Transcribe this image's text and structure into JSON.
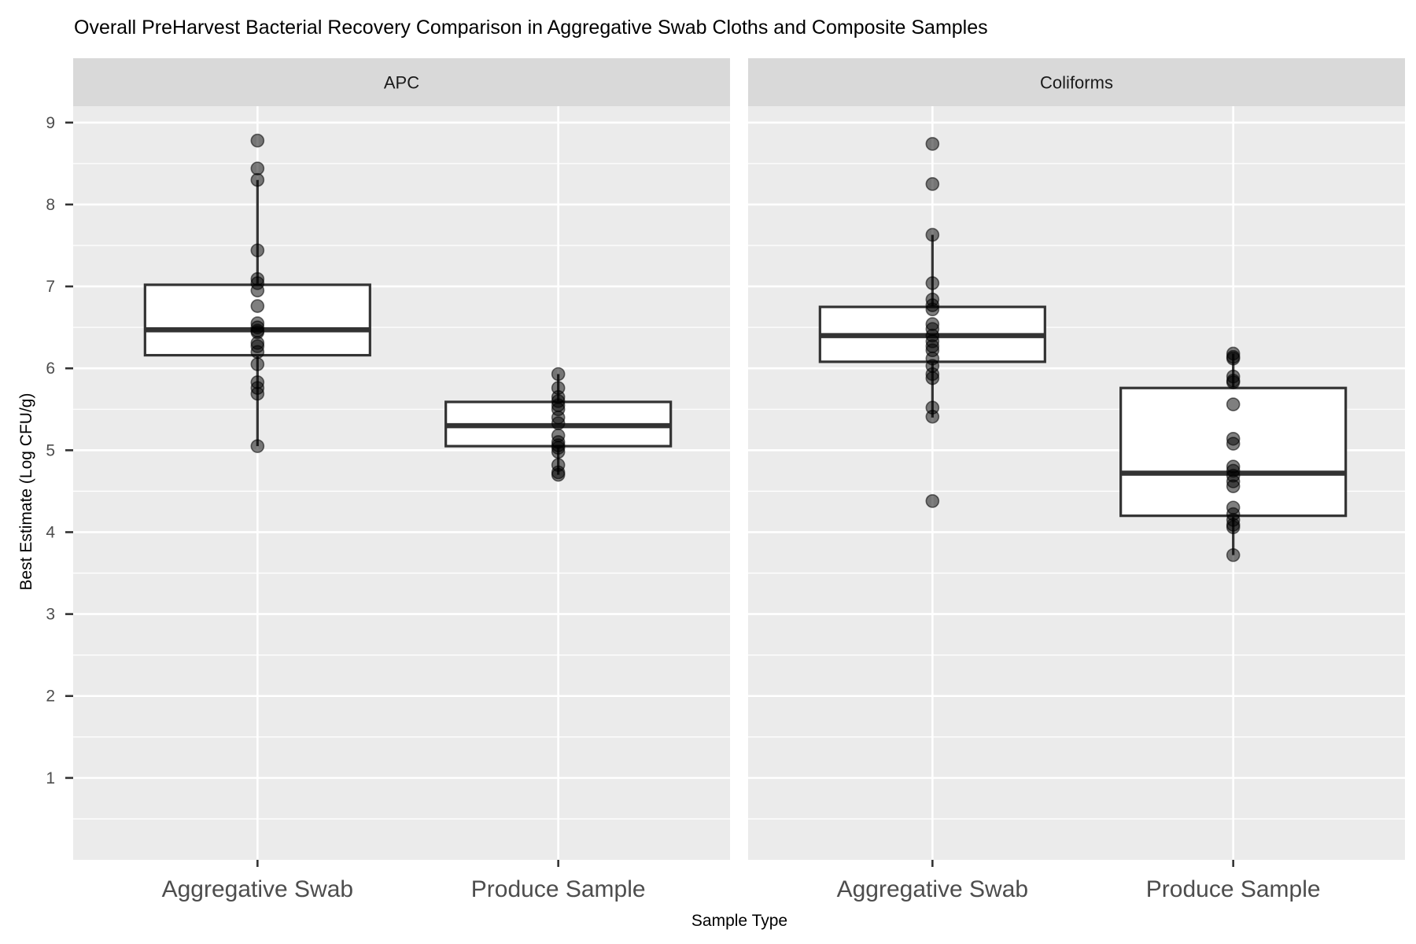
{
  "chart_data": {
    "type": "box",
    "title": "Overall PreHarvest Bacterial Recovery Comparison in Aggregative Swab Cloths and Composite Samples",
    "xlabel": "Sample Type",
    "ylabel": "Best Estimate (Log CFU/g)",
    "ylim": [
      0,
      9.2
    ],
    "yticks": [
      1,
      2,
      3,
      4,
      5,
      6,
      7,
      8,
      9
    ],
    "ytick_labels": [
      "1",
      "2",
      "3",
      "4",
      "5",
      "6",
      "7",
      "8",
      "9"
    ],
    "categories": [
      "Aggregative Swab",
      "Produce Sample"
    ],
    "grid": true,
    "legend": "none",
    "colors": {
      "panel_bg": "#ebebeb",
      "strip_bg": "#d9d9d9",
      "grid": "#ffffff",
      "box_line": "#333333",
      "box_fill": "#ffffff",
      "point": "#000000"
    },
    "panels": [
      {
        "name": "APC",
        "groups": [
          {
            "category": "Aggregative Swab",
            "whisker_low": 5.05,
            "q1": 6.16,
            "median": 6.47,
            "q3": 7.02,
            "whisker_high": 8.3,
            "points": [
              8.78,
              8.44,
              8.3,
              7.44,
              7.09,
              7.04,
              6.95,
              6.76,
              6.55,
              6.5,
              6.46,
              6.44,
              6.31,
              6.27,
              6.2,
              6.05,
              5.83,
              5.76,
              5.69,
              5.05
            ]
          },
          {
            "category": "Produce Sample",
            "whisker_low": 4.7,
            "q1": 5.05,
            "median": 5.3,
            "q3": 5.59,
            "whisker_high": 5.93,
            "points": [
              5.93,
              5.76,
              5.65,
              5.6,
              5.55,
              5.5,
              5.4,
              5.33,
              5.18,
              5.1,
              5.06,
              5.03,
              4.98,
              4.82,
              4.73,
              4.7
            ]
          }
        ]
      },
      {
        "name": "Coliforms",
        "groups": [
          {
            "category": "Aggregative Swab",
            "whisker_low": 5.4,
            "q1": 6.08,
            "median": 6.4,
            "q3": 6.75,
            "whisker_high": 7.63,
            "points": [
              8.74,
              8.25,
              7.63,
              7.04,
              6.84,
              6.77,
              6.72,
              6.54,
              6.48,
              6.4,
              6.33,
              6.27,
              6.22,
              6.12,
              6.03,
              5.93,
              5.88,
              5.52,
              5.41,
              4.38
            ]
          },
          {
            "category": "Produce Sample",
            "whisker_low": 3.72,
            "q1": 4.2,
            "median": 4.72,
            "q3": 5.76,
            "whisker_high": 6.18,
            "points": [
              6.18,
              6.14,
              6.12,
              5.9,
              5.85,
              5.83,
              5.56,
              5.14,
              5.08,
              4.8,
              4.75,
              4.69,
              4.62,
              4.56,
              4.3,
              4.22,
              4.15,
              4.09,
              4.06,
              3.72
            ]
          }
        ]
      }
    ]
  }
}
